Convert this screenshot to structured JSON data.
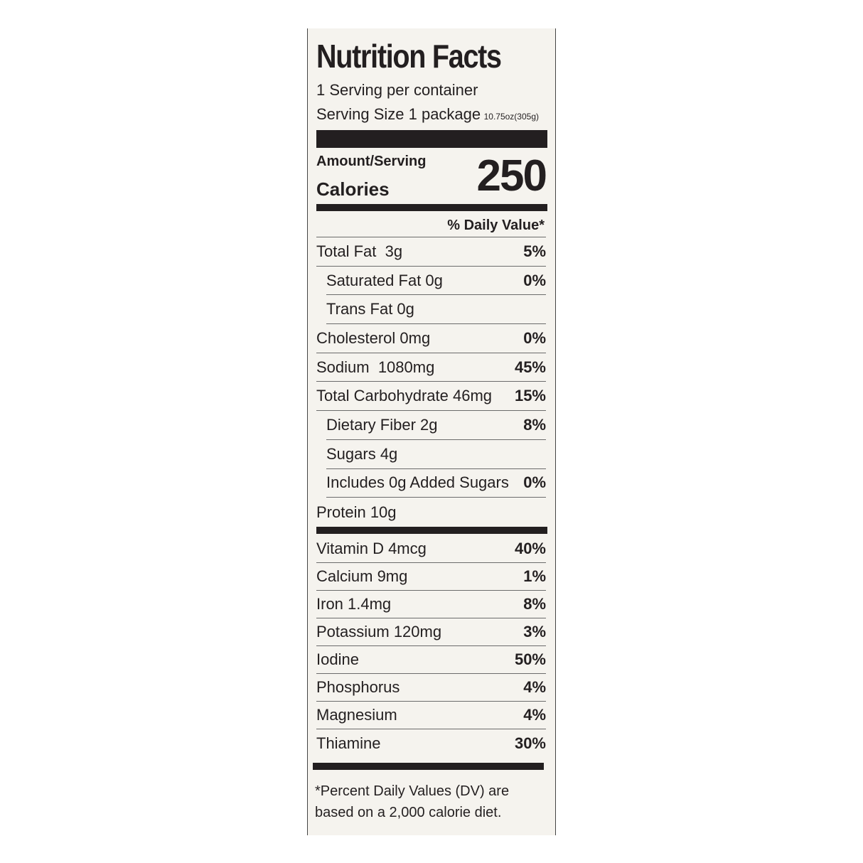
{
  "label": {
    "title": "Nutrition Facts",
    "servings": "1 Serving per container",
    "serving_size": "Serving Size 1 package",
    "serving_weight": "10.75oz(305g)",
    "amount_per_serving": "Amount/Serving",
    "calories_label": "Calories",
    "calories": 250,
    "daily_value_header": "% Daily Value*",
    "nutrients": [
      {
        "text": "Total Fat  3g",
        "dv": "5%",
        "indent": false
      },
      {
        "text": "Saturated Fat 0g",
        "dv": "0%",
        "indent": true
      },
      {
        "text": "Trans Fat 0g",
        "indent": true
      },
      {
        "text": "Cholesterol 0mg",
        "dv": "0%",
        "indent": false
      },
      {
        "text": "Sodium  1080mg",
        "dv": "45%",
        "indent": false
      },
      {
        "text": "Total Carbohydrate 46mg",
        "dv": "15%",
        "indent": false
      },
      {
        "text": "Dietary Fiber 2g",
        "dv": "8%",
        "indent": true
      },
      {
        "text": "Sugars 4g",
        "indent": true
      },
      {
        "text": "Includes 0g Added Sugars",
        "dv": "0%",
        "indent": true
      },
      {
        "text": "Protein 10g",
        "indent": false
      }
    ],
    "vitamins": [
      {
        "text": "Vitamin D 4mcg",
        "dv": "40%"
      },
      {
        "text": "Calcium 9mg",
        "dv": "1%"
      },
      {
        "text": "Iron 1.4mg",
        "dv": "8%"
      },
      {
        "text": "Potassium 120mg",
        "dv": "3%"
      },
      {
        "text": "Iodine",
        "dv": "50%"
      },
      {
        "text": "Phosphorus",
        "dv": "4%"
      },
      {
        "text": "Magnesium",
        "dv": "4%"
      },
      {
        "text": "Thiamine",
        "dv": "30%"
      }
    ],
    "footnote": "*Percent Daily Values (DV) are based on a 2,000 calorie diet."
  }
}
